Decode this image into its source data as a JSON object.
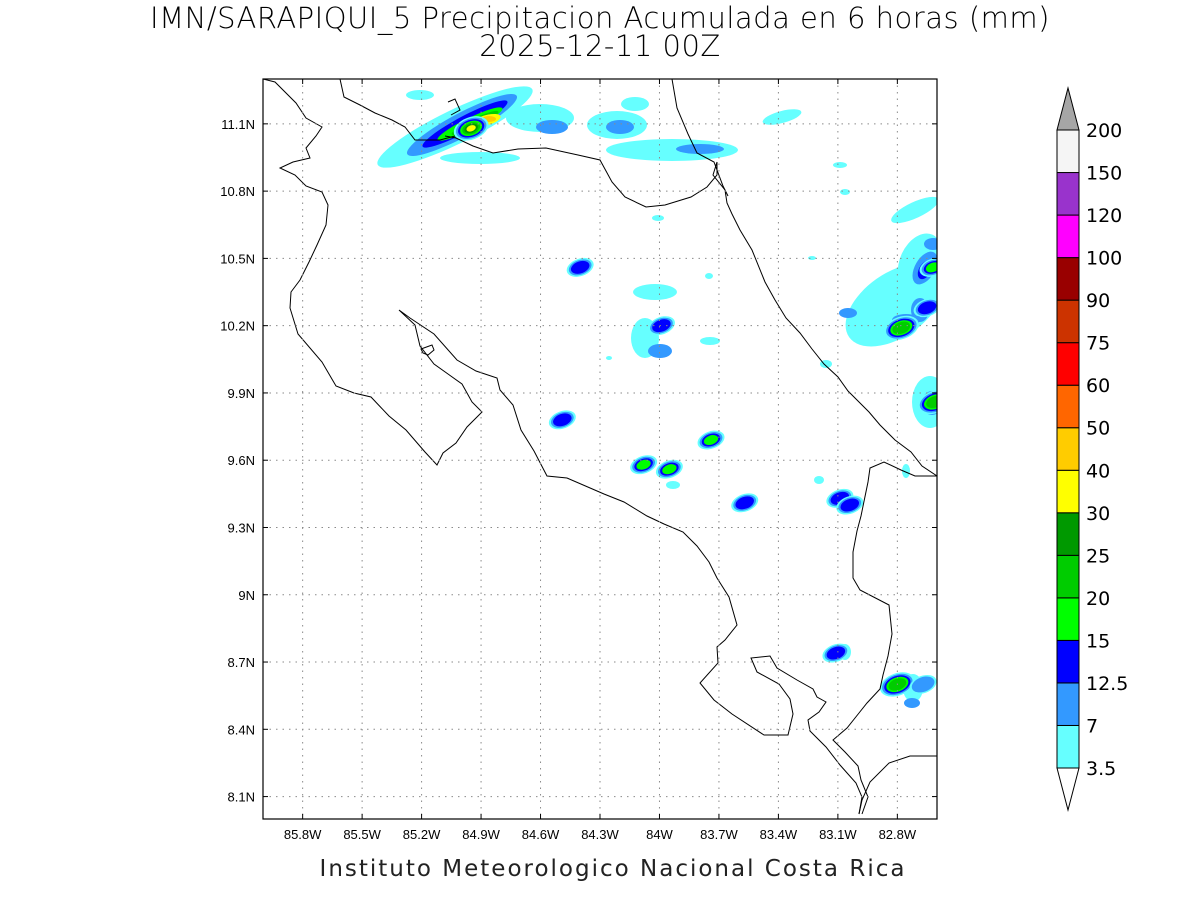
{
  "header": {
    "title_line1": "IMN/SARAPIQUI_5 Precipitacion Acumulada en 6 horas (mm)",
    "title_line2": "2025-12-11 00Z"
  },
  "footer": {
    "credit": "Instituto Meteorologico Nacional Costa Rica"
  },
  "map": {
    "lon_range": [
      -86.0,
      -82.6
    ],
    "lat_range": [
      8.0,
      11.3
    ],
    "lon_ticks": [
      {
        "value": -85.8,
        "label": "85.8W"
      },
      {
        "value": -85.5,
        "label": "85.5W"
      },
      {
        "value": -85.2,
        "label": "85.2W"
      },
      {
        "value": -84.9,
        "label": "84.9W"
      },
      {
        "value": -84.6,
        "label": "84.6W"
      },
      {
        "value": -84.3,
        "label": "84.3W"
      },
      {
        "value": -84.0,
        "label": "84W"
      },
      {
        "value": -83.7,
        "label": "83.7W"
      },
      {
        "value": -83.4,
        "label": "83.4W"
      },
      {
        "value": -83.1,
        "label": "83.1W"
      },
      {
        "value": -82.8,
        "label": "82.8W"
      }
    ],
    "lat_ticks": [
      {
        "value": 11.1,
        "label": "11.1N"
      },
      {
        "value": 10.8,
        "label": "10.8N"
      },
      {
        "value": 10.5,
        "label": "10.5N"
      },
      {
        "value": 10.2,
        "label": "10.2N"
      },
      {
        "value": 9.9,
        "label": "9.9N"
      },
      {
        "value": 9.6,
        "label": "9.6N"
      },
      {
        "value": 9.3,
        "label": "9.3N"
      },
      {
        "value": 9.0,
        "label": "9N"
      },
      {
        "value": 8.7,
        "label": "8.7N"
      },
      {
        "value": 8.4,
        "label": "8.4N"
      },
      {
        "value": 8.1,
        "label": "8.1N"
      }
    ],
    "grid": true,
    "grid_style": "dotted"
  },
  "colorbar": {
    "labels": [
      "3.5",
      "7",
      "12.5",
      "15",
      "20",
      "25",
      "30",
      "40",
      "50",
      "60",
      "75",
      "90",
      "100",
      "120",
      "150",
      "200"
    ],
    "colors": [
      "#66ffff",
      "#3399ff",
      "#0000ff",
      "#00ff00",
      "#00cc00",
      "#009900",
      "#ffff00",
      "#ffcc00",
      "#ff6600",
      "#ff0000",
      "#cc3300",
      "#990000",
      "#ff00ff",
      "#9933cc",
      "#f5f5f5"
    ],
    "below_color": "#ffffff",
    "above_color": "#a6a6a6"
  },
  "precip_cells": [
    {
      "lon": -84.95,
      "lat": 11.08,
      "level": 6
    },
    {
      "lon": -84.4,
      "lat": 10.46,
      "level": 2
    },
    {
      "lon": -83.99,
      "lat": 10.2,
      "level": 2
    },
    {
      "lon": -84.49,
      "lat": 9.78,
      "level": 2
    },
    {
      "lon": -84.08,
      "lat": 9.58,
      "level": 3
    },
    {
      "lon": -83.95,
      "lat": 9.56,
      "level": 3
    },
    {
      "lon": -83.74,
      "lat": 9.69,
      "level": 3
    },
    {
      "lon": -83.57,
      "lat": 9.41,
      "level": 2
    },
    {
      "lon": -83.09,
      "lat": 9.43,
      "level": 2
    },
    {
      "lon": -83.04,
      "lat": 9.4,
      "level": 2
    },
    {
      "lon": -82.78,
      "lat": 10.19,
      "level": 4
    },
    {
      "lon": -82.65,
      "lat": 10.28,
      "level": 2
    },
    {
      "lon": -82.62,
      "lat": 10.46,
      "level": 3
    },
    {
      "lon": -82.61,
      "lat": 9.86,
      "level": 4
    },
    {
      "lon": -83.11,
      "lat": 8.74,
      "level": 2
    },
    {
      "lon": -82.8,
      "lat": 8.6,
      "level": 4
    },
    {
      "lon": -82.67,
      "lat": 8.6,
      "level": 1
    }
  ]
}
